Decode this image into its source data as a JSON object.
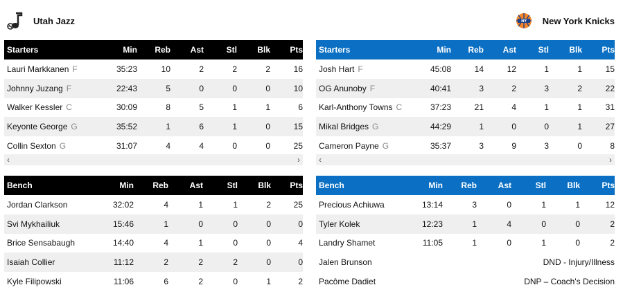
{
  "jazz": {
    "name": "Utah Jazz",
    "logo_icon": "jazz-note-icon",
    "headers": [
      "Starters",
      "Min",
      "Reb",
      "Ast",
      "Stl",
      "Blk",
      "Pts"
    ],
    "bench_headers": [
      "Bench",
      "Min",
      "Reb",
      "Ast",
      "Stl",
      "Blk",
      "Pts"
    ],
    "starters": [
      {
        "name": "Lauri Markkanen",
        "pos": "F",
        "min": "35:23",
        "reb": "10",
        "ast": "2",
        "stl": "2",
        "blk": "2",
        "pts": "16"
      },
      {
        "name": "Johnny Juzang",
        "pos": "F",
        "min": "22:43",
        "reb": "5",
        "ast": "0",
        "stl": "0",
        "blk": "0",
        "pts": "10"
      },
      {
        "name": "Walker Kessler",
        "pos": "C",
        "min": "30:09",
        "reb": "8",
        "ast": "5",
        "stl": "1",
        "blk": "1",
        "pts": "6"
      },
      {
        "name": "Keyonte George",
        "pos": "G",
        "min": "35:52",
        "reb": "1",
        "ast": "6",
        "stl": "1",
        "blk": "0",
        "pts": "15"
      },
      {
        "name": "Collin Sexton",
        "pos": "G",
        "min": "31:07",
        "reb": "4",
        "ast": "4",
        "stl": "0",
        "blk": "0",
        "pts": "25"
      }
    ],
    "bench": [
      {
        "name": "Jordan Clarkson",
        "min": "32:02",
        "reb": "4",
        "ast": "1",
        "stl": "1",
        "blk": "2",
        "pts": "25"
      },
      {
        "name": "Svi Mykhailiuk",
        "min": "15:46",
        "reb": "1",
        "ast": "0",
        "stl": "0",
        "blk": "0",
        "pts": "0"
      },
      {
        "name": "Brice Sensabaugh",
        "min": "14:40",
        "reb": "4",
        "ast": "1",
        "stl": "0",
        "blk": "0",
        "pts": "4"
      },
      {
        "name": "Isaiah Collier",
        "min": "11:12",
        "reb": "2",
        "ast": "2",
        "stl": "2",
        "blk": "0",
        "pts": "0"
      },
      {
        "name": "Kyle Filipowski",
        "min": "11:06",
        "reb": "6",
        "ast": "2",
        "stl": "0",
        "blk": "1",
        "pts": "2"
      }
    ]
  },
  "knicks": {
    "name": "New York Knicks",
    "logo_icon": "knicks-basketball-icon",
    "headers": [
      "Starters",
      "Min",
      "Reb",
      "Ast",
      "Stl",
      "Blk",
      "Pts"
    ],
    "bench_headers": [
      "Bench",
      "Min",
      "Reb",
      "Ast",
      "Stl",
      "Blk",
      "Pts"
    ],
    "starters": [
      {
        "name": "Josh Hart",
        "pos": "F",
        "min": "45:08",
        "reb": "14",
        "ast": "12",
        "stl": "1",
        "blk": "1",
        "pts": "15"
      },
      {
        "name": "OG Anunoby",
        "pos": "F",
        "min": "40:41",
        "reb": "3",
        "ast": "2",
        "stl": "3",
        "blk": "2",
        "pts": "22"
      },
      {
        "name": "Karl-Anthony Towns",
        "pos": "C",
        "min": "37:23",
        "reb": "21",
        "ast": "4",
        "stl": "1",
        "blk": "1",
        "pts": "31"
      },
      {
        "name": "Mikal Bridges",
        "pos": "G",
        "min": "44:29",
        "reb": "1",
        "ast": "0",
        "stl": "0",
        "blk": "1",
        "pts": "27"
      },
      {
        "name": "Cameron Payne",
        "pos": "G",
        "min": "35:37",
        "reb": "3",
        "ast": "9",
        "stl": "3",
        "blk": "0",
        "pts": "8"
      }
    ],
    "bench": [
      {
        "name": "Precious Achiuwa",
        "min": "13:14",
        "reb": "3",
        "ast": "0",
        "stl": "1",
        "blk": "1",
        "pts": "12"
      },
      {
        "name": "Tyler Kolek",
        "min": "12:23",
        "reb": "1",
        "ast": "4",
        "stl": "0",
        "blk": "0",
        "pts": "2"
      },
      {
        "name": "Landry Shamet",
        "min": "11:05",
        "reb": "1",
        "ast": "0",
        "stl": "1",
        "blk": "0",
        "pts": "2"
      }
    ],
    "dnp": [
      {
        "name": "Jalen Brunson",
        "status": "DND - Injury/Illness"
      },
      {
        "name": "Pacôme Dadiet",
        "status": "DNP – Coach's Decision"
      }
    ]
  },
  "scroll": {
    "left": "‹",
    "right": "›"
  },
  "colors": {
    "jazz_header": "#000000",
    "knicks_header": "#0b70c4",
    "row_alt": "#efefef"
  }
}
